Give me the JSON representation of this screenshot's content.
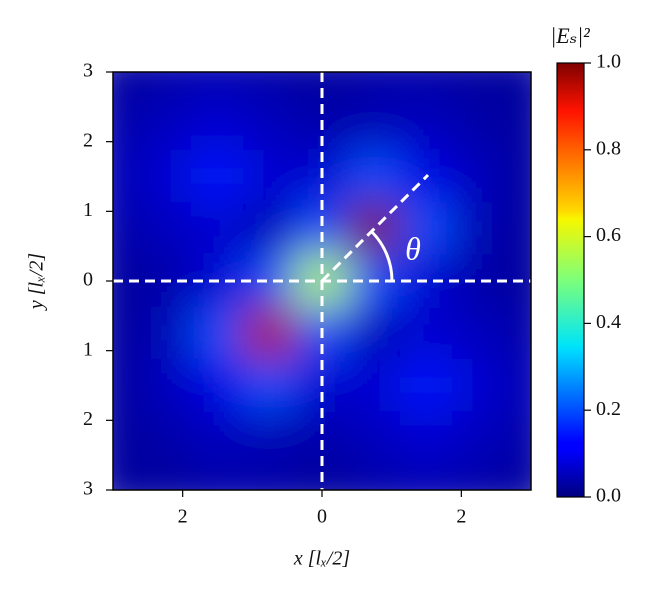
{
  "chart_data": {
    "type": "heatmap",
    "colormap": "jet",
    "xlabel": "x [lₓ/2]",
    "ylabel": "y [lₓ/2]",
    "x": [
      -3,
      -2.25,
      -1.5,
      -0.75,
      0,
      0.75,
      1.5,
      2.25,
      3
    ],
    "y": [
      3,
      2.25,
      1.5,
      0.75,
      0,
      -0.75,
      -1.5,
      -2.25,
      -3
    ],
    "z": [
      [
        0.03,
        0.04,
        0.05,
        0.04,
        0.03,
        0.04,
        0.04,
        0.03,
        0.03
      ],
      [
        0.04,
        0.06,
        0.08,
        0.06,
        0.04,
        0.05,
        0.06,
        0.04,
        0.03
      ],
      [
        0.05,
        0.08,
        0.15,
        0.08,
        0.08,
        0.2,
        0.1,
        0.06,
        0.03
      ],
      [
        0.04,
        0.06,
        0.08,
        0.05,
        0.2,
        1.0,
        0.2,
        0.05,
        0.03
      ],
      [
        0.03,
        0.04,
        0.08,
        0.2,
        0.55,
        0.2,
        0.08,
        0.04,
        0.03
      ],
      [
        0.03,
        0.05,
        0.2,
        0.95,
        0.2,
        0.05,
        0.08,
        0.06,
        0.04
      ],
      [
        0.03,
        0.06,
        0.1,
        0.2,
        0.08,
        0.08,
        0.15,
        0.08,
        0.05
      ],
      [
        0.03,
        0.04,
        0.06,
        0.05,
        0.04,
        0.06,
        0.08,
        0.06,
        0.04
      ],
      [
        0.03,
        0.03,
        0.04,
        0.04,
        0.03,
        0.04,
        0.05,
        0.04,
        0.03
      ]
    ],
    "xlim": [
      -3,
      3
    ],
    "ylim": [
      -3,
      3
    ],
    "xticks": [
      {
        "value": -2,
        "label": "2"
      },
      0,
      2
    ],
    "yticks": [
      {
        "value": -3,
        "label": "3"
      },
      {
        "value": -2,
        "label": "2"
      },
      {
        "value": -1,
        "label": "1"
      },
      0,
      1,
      2,
      3
    ],
    "colorbar": {
      "label": "|Eₛ|²",
      "lim": [
        0,
        1
      ],
      "ticks": [
        {
          "value": 0,
          "label": "0.0"
        },
        {
          "value": 0.2,
          "label": "0.2"
        },
        {
          "value": 0.4,
          "label": "0.4"
        },
        {
          "value": 0.6,
          "label": "0.6"
        },
        {
          "value": 0.8,
          "label": "0.8"
        },
        {
          "value": 1,
          "label": "1.0"
        }
      ]
    },
    "annotation": "θ"
  }
}
